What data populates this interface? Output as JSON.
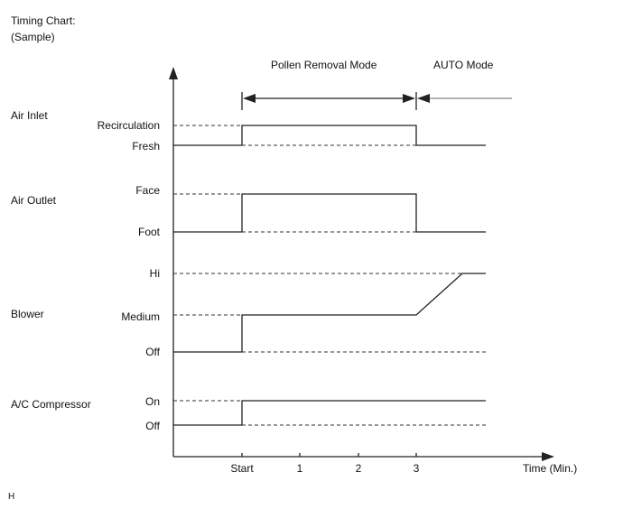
{
  "header": {
    "title": "Timing Chart:",
    "subtitle": "(Sample)"
  },
  "modes": {
    "pollen": "Pollen Removal Mode",
    "auto": "AUTO Mode"
  },
  "signals": {
    "air_inlet": {
      "name": "Air Inlet",
      "high": "Recirculation",
      "low": "Fresh"
    },
    "air_outlet": {
      "name": "Air Outlet",
      "high": "Face",
      "low": "Foot"
    },
    "blower": {
      "name": "Blower",
      "high": "Hi",
      "mid": "Medium",
      "low": "Off"
    },
    "ac": {
      "name": "A/C Compressor",
      "high": "On",
      "low": "Off"
    }
  },
  "x_axis": {
    "ticks": [
      "Start",
      "1",
      "2",
      "3"
    ],
    "label": "Time (Min.)"
  },
  "footer": {
    "code": "H"
  },
  "colors": {
    "line": "#222222",
    "text": "#111111",
    "arrow": "#666666"
  }
}
